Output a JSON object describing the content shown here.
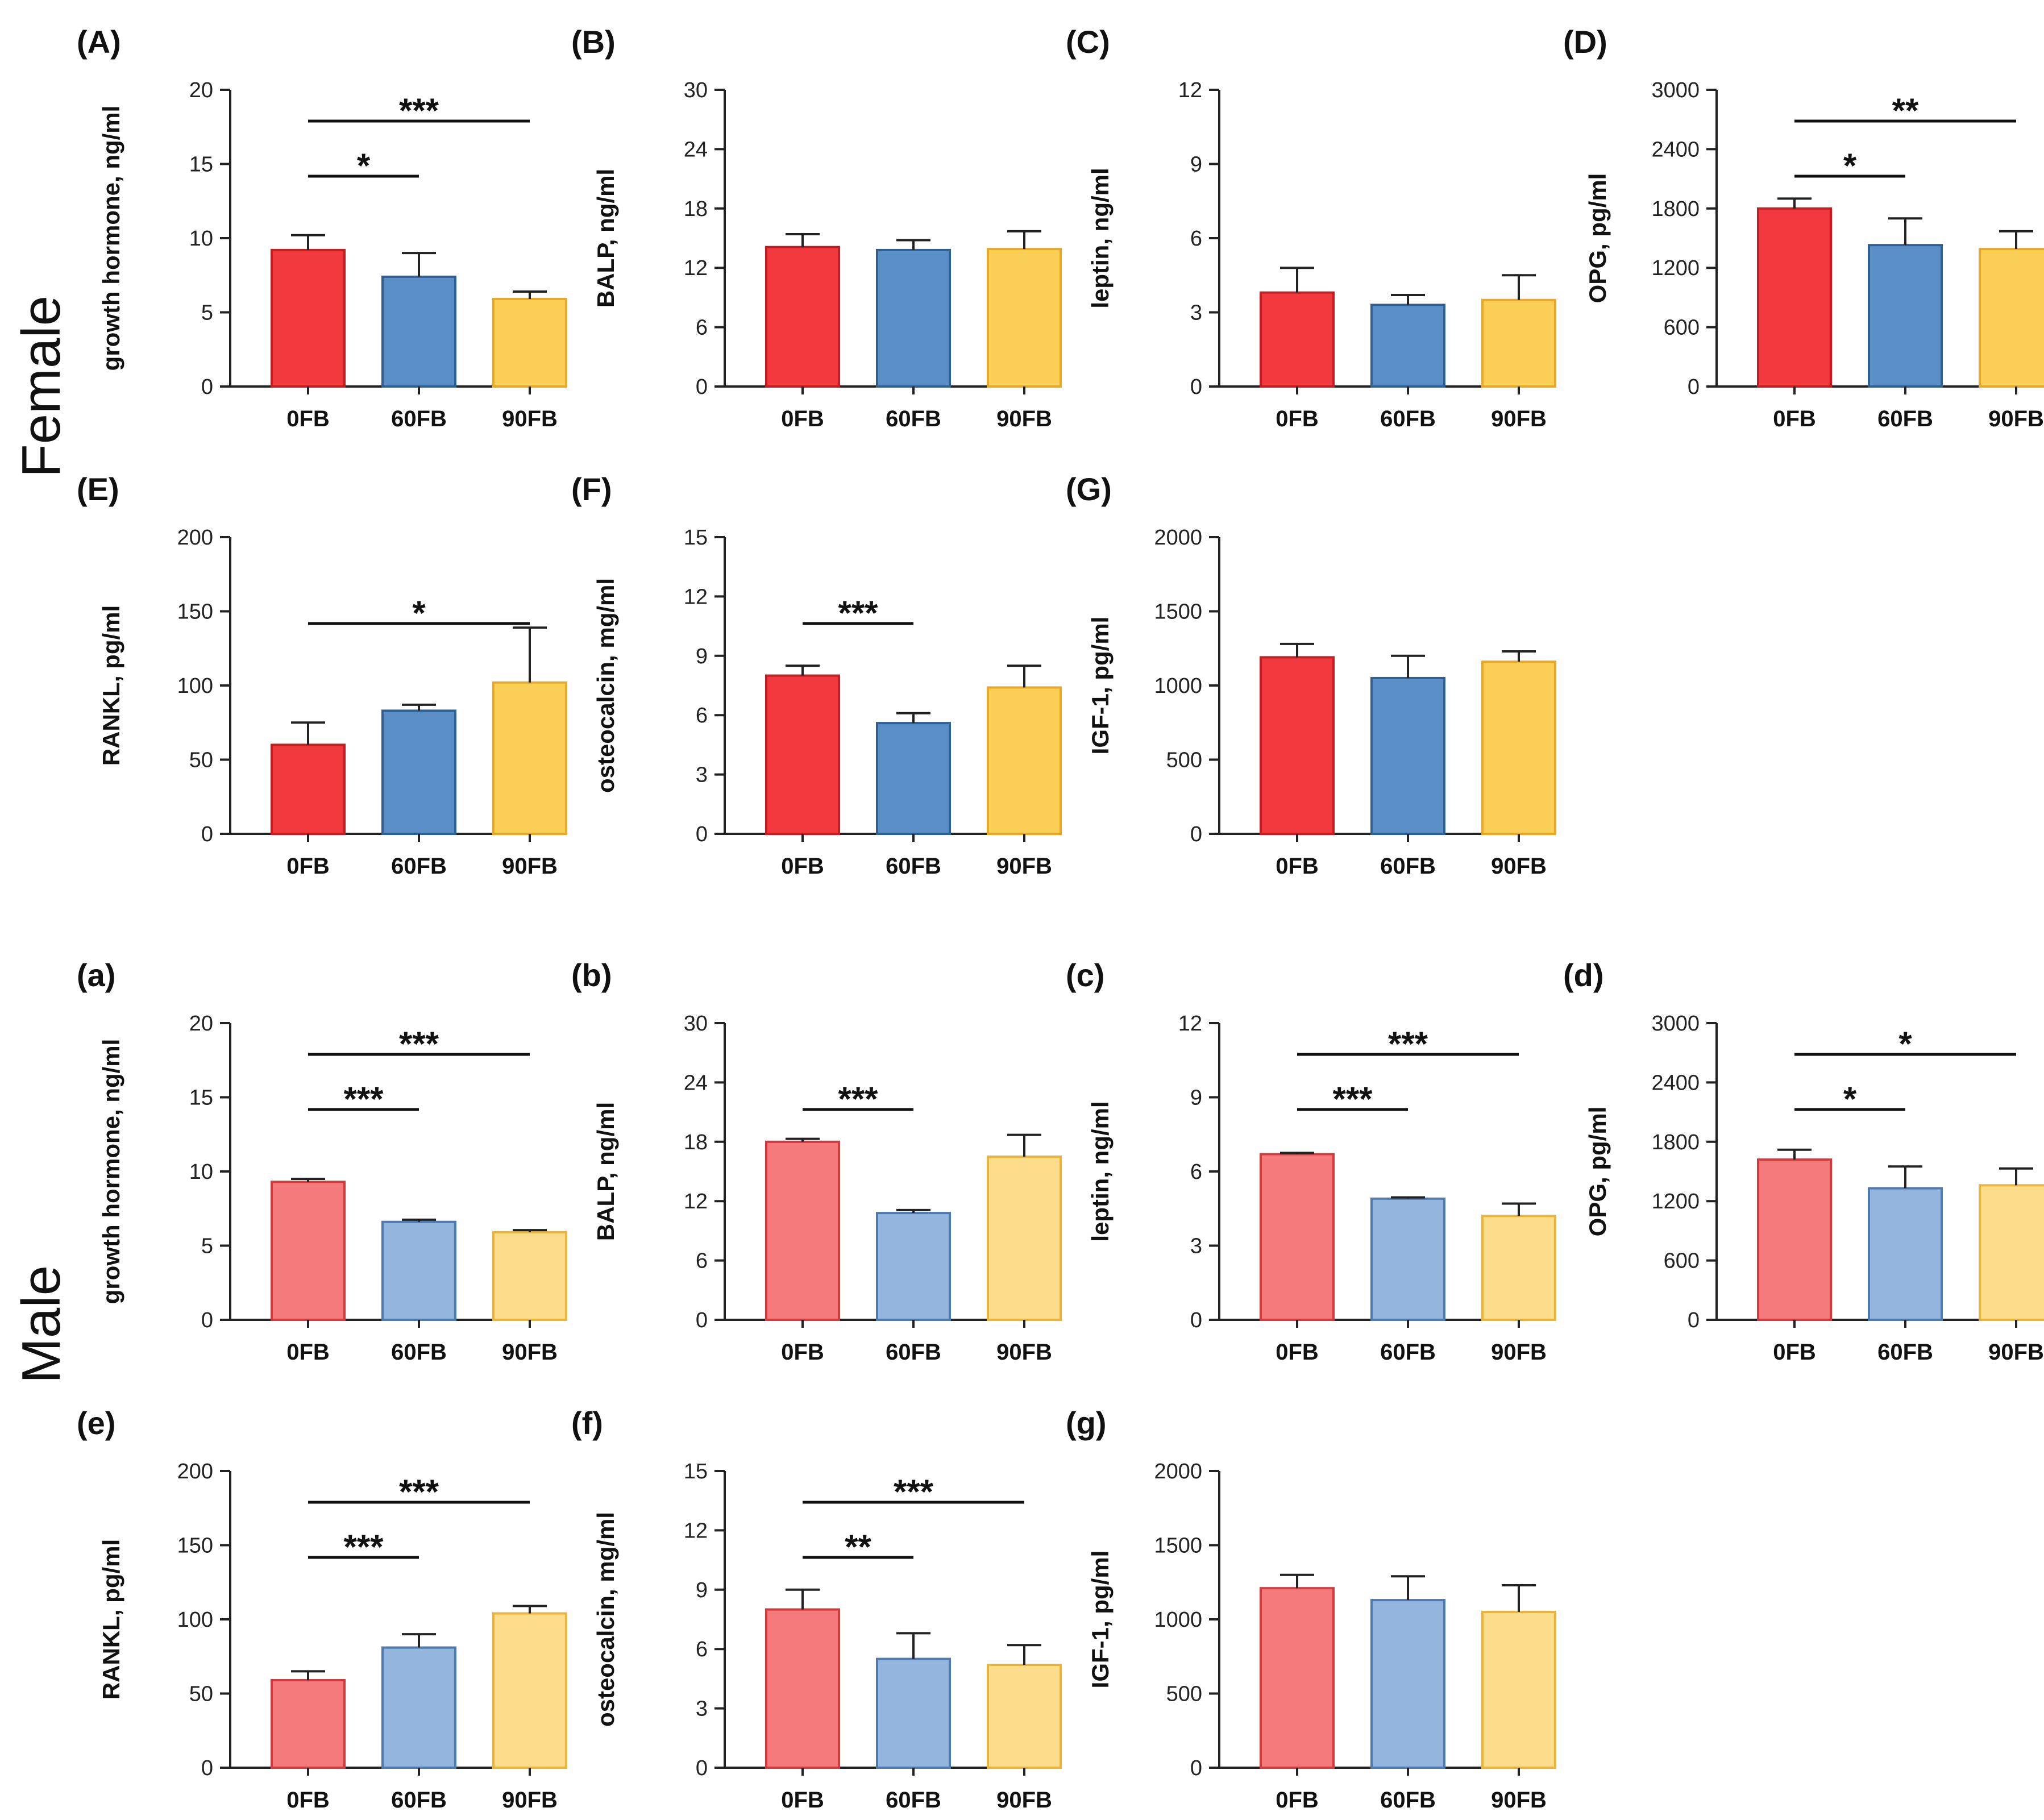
{
  "row_labels": [
    "Female",
    "Male"
  ],
  "chart_data": [
    {
      "panel": "(A)",
      "type": "bar",
      "ylabel": "growth hormone, ng/ml",
      "yticks": [
        "0",
        "5",
        "10",
        "15",
        "20"
      ],
      "ylim": [
        0,
        20
      ],
      "categories": [
        "0FB",
        "60FB",
        "90FB"
      ],
      "values": [
        9.2,
        7.4,
        5.9
      ],
      "errors": [
        1.0,
        1.6,
        0.5
      ],
      "significance": [
        {
          "from": 0,
          "to": 1,
          "label": "*"
        },
        {
          "from": 0,
          "to": 2,
          "label": "***"
        }
      ]
    },
    {
      "panel": "(B)",
      "type": "bar",
      "ylabel": "BALP, ng/ml",
      "yticks": [
        "0",
        "6",
        "12",
        "18",
        "24",
        "30"
      ],
      "ylim": [
        0,
        30
      ],
      "categories": [
        "0FB",
        "60FB",
        "90FB"
      ],
      "values": [
        14.1,
        13.8,
        13.9
      ],
      "errors": [
        1.3,
        1.0,
        1.8
      ],
      "significance": []
    },
    {
      "panel": "(C)",
      "type": "bar",
      "ylabel": "leptin, ng/ml",
      "yticks": [
        "0",
        "3",
        "6",
        "9",
        "12"
      ],
      "ylim": [
        0,
        12
      ],
      "categories": [
        "0FB",
        "60FB",
        "90FB"
      ],
      "values": [
        3.8,
        3.3,
        3.5
      ],
      "errors": [
        1.0,
        0.4,
        1.0
      ],
      "significance": []
    },
    {
      "panel": "(D)",
      "type": "bar",
      "ylabel": "OPG, pg/ml",
      "yticks": [
        "0",
        "600",
        "1200",
        "1800",
        "2400",
        "3000"
      ],
      "ylim": [
        0,
        3000
      ],
      "categories": [
        "0FB",
        "60FB",
        "90FB"
      ],
      "values": [
        1800,
        1430,
        1390
      ],
      "errors": [
        100,
        270,
        180
      ],
      "significance": [
        {
          "from": 0,
          "to": 1,
          "label": "*"
        },
        {
          "from": 0,
          "to": 2,
          "label": "**"
        }
      ]
    },
    {
      "panel": "(E)",
      "type": "bar",
      "ylabel": "RANKL, pg/ml",
      "yticks": [
        "0",
        "50",
        "100",
        "150",
        "200"
      ],
      "ylim": [
        0,
        200
      ],
      "categories": [
        "0FB",
        "60FB",
        "90FB"
      ],
      "values": [
        60,
        83,
        102
      ],
      "errors": [
        15,
        4,
        37
      ],
      "significance": [
        {
          "from": 0,
          "to": 2,
          "label": "*"
        }
      ]
    },
    {
      "panel": "(F)",
      "type": "bar",
      "ylabel": "osteocalcin, mg/ml",
      "yticks": [
        "0",
        "3",
        "6",
        "9",
        "12",
        "15"
      ],
      "ylim": [
        0,
        15
      ],
      "categories": [
        "0FB",
        "60FB",
        "90FB"
      ],
      "values": [
        8.0,
        5.6,
        7.4
      ],
      "errors": [
        0.5,
        0.5,
        1.1
      ],
      "significance": [
        {
          "from": 0,
          "to": 1,
          "label": "***"
        }
      ]
    },
    {
      "panel": "(G)",
      "type": "bar",
      "ylabel": "IGF-1, pg/ml",
      "yticks": [
        "0",
        "500",
        "1000",
        "1500",
        "2000"
      ],
      "ylim": [
        0,
        2000
      ],
      "categories": [
        "0FB",
        "60FB",
        "90FB"
      ],
      "values": [
        1190,
        1050,
        1160
      ],
      "errors": [
        90,
        150,
        70
      ],
      "significance": []
    },
    {
      "panel": "(a)",
      "type": "bar",
      "ylabel": "growth hormone, ng/ml",
      "yticks": [
        "0",
        "5",
        "10",
        "15",
        "20"
      ],
      "ylim": [
        0,
        20
      ],
      "categories": [
        "0FB",
        "60FB",
        "90FB"
      ],
      "values": [
        9.3,
        6.6,
        5.9
      ],
      "errors": [
        0.2,
        0.15,
        0.15
      ],
      "significance": [
        {
          "from": 0,
          "to": 1,
          "label": "***"
        },
        {
          "from": 0,
          "to": 2,
          "label": "***"
        }
      ]
    },
    {
      "panel": "(b)",
      "type": "bar",
      "ylabel": "BALP, ng/ml",
      "yticks": [
        "0",
        "6",
        "12",
        "18",
        "24",
        "30"
      ],
      "ylim": [
        0,
        30
      ],
      "categories": [
        "0FB",
        "60FB",
        "90FB"
      ],
      "values": [
        18.0,
        10.8,
        16.5
      ],
      "errors": [
        0.3,
        0.3,
        2.2
      ],
      "significance": [
        {
          "from": 0,
          "to": 1,
          "label": "***"
        }
      ]
    },
    {
      "panel": "(c)",
      "type": "bar",
      "ylabel": "leptin, ng/ml",
      "yticks": [
        "0",
        "3",
        "6",
        "9",
        "12"
      ],
      "ylim": [
        0,
        12
      ],
      "categories": [
        "0FB",
        "60FB",
        "90FB"
      ],
      "values": [
        6.7,
        4.9,
        4.2
      ],
      "errors": [
        0.05,
        0.05,
        0.5
      ],
      "significance": [
        {
          "from": 0,
          "to": 1,
          "label": "***"
        },
        {
          "from": 0,
          "to": 2,
          "label": "***"
        }
      ]
    },
    {
      "panel": "(d)",
      "type": "bar",
      "ylabel": "OPG, pg/ml",
      "yticks": [
        "0",
        "600",
        "1200",
        "1800",
        "2400",
        "3000"
      ],
      "ylim": [
        0,
        3000
      ],
      "categories": [
        "0FB",
        "60FB",
        "90FB"
      ],
      "values": [
        1620,
        1330,
        1360
      ],
      "errors": [
        100,
        220,
        170
      ],
      "significance": [
        {
          "from": 0,
          "to": 1,
          "label": "*"
        },
        {
          "from": 0,
          "to": 2,
          "label": "*"
        }
      ]
    },
    {
      "panel": "(e)",
      "type": "bar",
      "ylabel": "RANKL, pg/ml",
      "yticks": [
        "0",
        "50",
        "100",
        "150",
        "200"
      ],
      "ylim": [
        0,
        200
      ],
      "categories": [
        "0FB",
        "60FB",
        "90FB"
      ],
      "values": [
        59,
        81,
        104
      ],
      "errors": [
        6,
        9,
        5
      ],
      "significance": [
        {
          "from": 0,
          "to": 1,
          "label": "***"
        },
        {
          "from": 0,
          "to": 2,
          "label": "***"
        }
      ]
    },
    {
      "panel": "(f)",
      "type": "bar",
      "ylabel": "osteocalcin, mg/ml",
      "yticks": [
        "0",
        "3",
        "6",
        "9",
        "12",
        "15"
      ],
      "ylim": [
        0,
        15
      ],
      "categories": [
        "0FB",
        "60FB",
        "90FB"
      ],
      "values": [
        8.0,
        5.5,
        5.2
      ],
      "errors": [
        1.0,
        1.3,
        1.0
      ],
      "significance": [
        {
          "from": 0,
          "to": 1,
          "label": "**"
        },
        {
          "from": 0,
          "to": 2,
          "label": "***"
        }
      ]
    },
    {
      "panel": "(g)",
      "type": "bar",
      "ylabel": "IGF-1, pg/ml",
      "yticks": [
        "0",
        "500",
        "1000",
        "1500",
        "2000"
      ],
      "ylim": [
        0,
        2000
      ],
      "categories": [
        "0FB",
        "60FB",
        "90FB"
      ],
      "values": [
        1210,
        1130,
        1050
      ],
      "errors": [
        90,
        160,
        180
      ],
      "significance": []
    }
  ],
  "colors": {
    "female": {
      "fill": [
        "#f23a3e",
        "#5b8fc7",
        "#fbcf55"
      ],
      "stroke": [
        "#c41d22",
        "#2e5f95",
        "#e8a828"
      ]
    },
    "male": {
      "fill": [
        "#f47a7c",
        "#93b5de",
        "#fcdd8c"
      ],
      "stroke": [
        "#d23a3e",
        "#4d7bb1",
        "#eab33a"
      ]
    },
    "axis": "#222222"
  }
}
